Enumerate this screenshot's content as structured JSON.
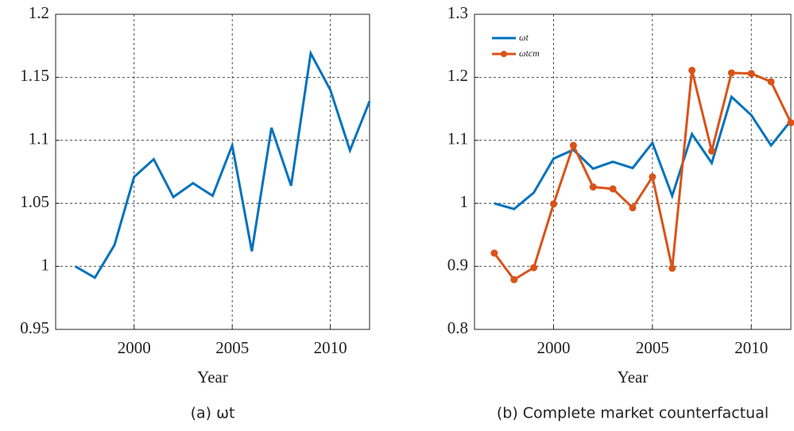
{
  "chart_data": [
    {
      "type": "line",
      "xlabel": "Year",
      "caption": "(a) ωt",
      "x": [
        1997,
        1998,
        1999,
        2000,
        2001,
        2002,
        2003,
        2004,
        2005,
        2006,
        2007,
        2008,
        2009,
        2010,
        2011,
        2012
      ],
      "series": [
        {
          "color": "#0072bd",
          "values": [
            1.0,
            0.991,
            1.017,
            1.071,
            1.085,
            1.055,
            1.066,
            1.056,
            1.096,
            1.012,
            1.11,
            1.064,
            1.169,
            1.14,
            1.092,
            1.131
          ]
        }
      ],
      "xlim": [
        1996,
        2012
      ],
      "xticks": [
        2000,
        2005,
        2010
      ],
      "ylim": [
        0.95,
        1.2
      ],
      "yticks": [
        0.95,
        1,
        1.05,
        1.1,
        1.15,
        1.2
      ],
      "grid": true
    },
    {
      "type": "line",
      "xlabel": "Year",
      "caption": "(b) Complete market counterfactual",
      "x": [
        1997,
        1998,
        1999,
        2000,
        2001,
        2002,
        2003,
        2004,
        2005,
        2006,
        2007,
        2008,
        2009,
        2010,
        2011,
        2012
      ],
      "series": [
        {
          "name": "ωt",
          "color": "#0072bd",
          "values": [
            1.0,
            0.991,
            1.017,
            1.071,
            1.085,
            1.055,
            1.066,
            1.056,
            1.096,
            1.012,
            1.11,
            1.064,
            1.169,
            1.14,
            1.092,
            1.131
          ]
        },
        {
          "name": "ωtcm",
          "color": "#d95319",
          "marker": "o",
          "values": [
            0.921,
            0.879,
            0.898,
            0.999,
            1.092,
            1.026,
            1.023,
            0.993,
            1.042,
            0.897,
            1.211,
            1.083,
            1.207,
            1.206,
            1.193,
            1.128
          ]
        }
      ],
      "xlim": [
        1996,
        2012
      ],
      "xticks": [
        2000,
        2005,
        2010
      ],
      "ylim": [
        0.8,
        1.3
      ],
      "yticks": [
        0.8,
        0.9,
        1,
        1.1,
        1.2,
        1.3
      ],
      "grid": true,
      "legend": "upper left"
    }
  ]
}
